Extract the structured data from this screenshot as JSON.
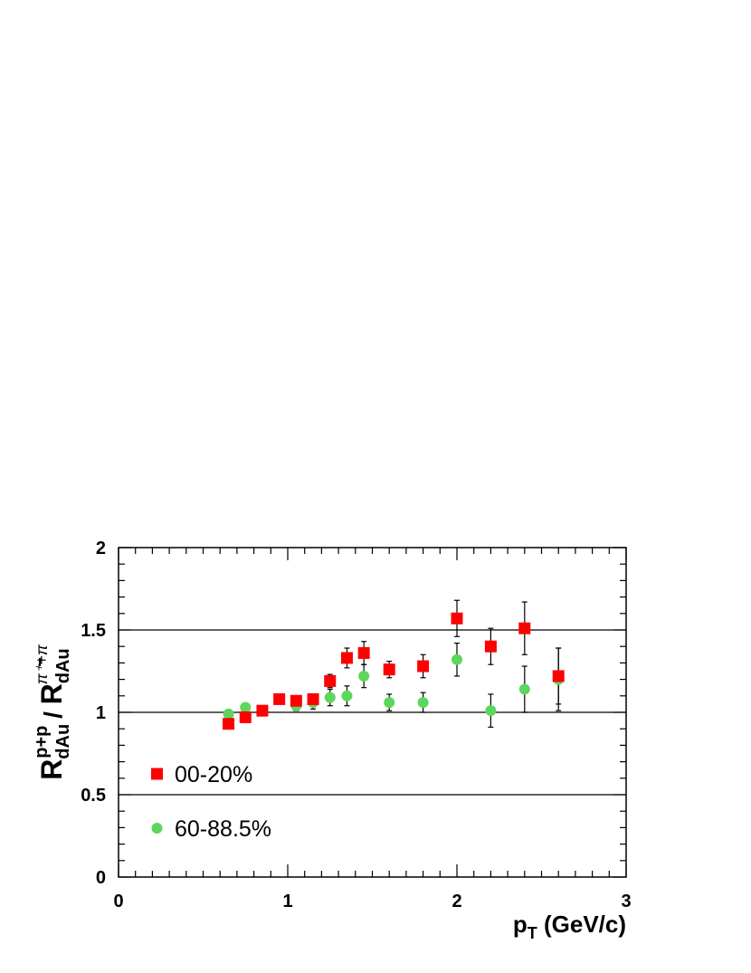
{
  "chart_data": {
    "type": "scatter",
    "xlabel": {
      "main": "p",
      "sub": "T",
      "rest": " (GeV/c)"
    },
    "ylabel": {
      "num_main": "R",
      "num_sub": "dAu",
      "num_sup": "p+p",
      "separator": " / ",
      "den_main": "R",
      "den_sub": "dAu",
      "den_sup": "π⁺+π"
    },
    "xlim": [
      0,
      3
    ],
    "ylim": [
      0,
      2
    ],
    "x_ticks": [
      "0",
      "1",
      "2",
      "3"
    ],
    "y_ticks": [
      "0",
      "0.5",
      "1",
      "1.5",
      "2"
    ],
    "reference_lines": [
      0.5,
      1.0,
      1.5
    ],
    "legend_position": "bottom-left",
    "series": [
      {
        "name": "00-20%",
        "marker": "square",
        "color": "#ff0000",
        "points": [
          {
            "x": 0.65,
            "y": 0.93,
            "err": 0.02
          },
          {
            "x": 0.75,
            "y": 0.97,
            "err": 0.02
          },
          {
            "x": 0.85,
            "y": 1.01,
            "err": 0.02
          },
          {
            "x": 0.95,
            "y": 1.08,
            "err": 0.03
          },
          {
            "x": 1.05,
            "y": 1.07,
            "err": 0.03
          },
          {
            "x": 1.15,
            "y": 1.08,
            "err": 0.03
          },
          {
            "x": 1.25,
            "y": 1.19,
            "err": 0.04
          },
          {
            "x": 1.35,
            "y": 1.33,
            "err": 0.06
          },
          {
            "x": 1.45,
            "y": 1.36,
            "err": 0.07
          },
          {
            "x": 1.6,
            "y": 1.26,
            "err": 0.05
          },
          {
            "x": 1.8,
            "y": 1.28,
            "err": 0.07
          },
          {
            "x": 2.0,
            "y": 1.57,
            "err": 0.11
          },
          {
            "x": 2.2,
            "y": 1.4,
            "err": 0.11
          },
          {
            "x": 2.4,
            "y": 1.51,
            "err": 0.16
          },
          {
            "x": 2.6,
            "y": 1.22,
            "err": 0.17
          }
        ]
      },
      {
        "name": "60-88.5%",
        "marker": "circle",
        "color": "#5ed65e",
        "points": [
          {
            "x": 0.65,
            "y": 0.99,
            "err": 0.02
          },
          {
            "x": 0.75,
            "y": 1.03,
            "err": 0.02
          },
          {
            "x": 0.95,
            "y": 1.08,
            "err": 0.02
          },
          {
            "x": 1.05,
            "y": 1.04,
            "err": 0.03
          },
          {
            "x": 1.15,
            "y": 1.06,
            "err": 0.04
          },
          {
            "x": 1.25,
            "y": 1.09,
            "err": 0.05
          },
          {
            "x": 1.35,
            "y": 1.1,
            "err": 0.06
          },
          {
            "x": 1.45,
            "y": 1.22,
            "err": 0.07
          },
          {
            "x": 1.6,
            "y": 1.06,
            "err": 0.05
          },
          {
            "x": 1.8,
            "y": 1.06,
            "err": 0.06
          },
          {
            "x": 2.0,
            "y": 1.32,
            "err": 0.1
          },
          {
            "x": 2.2,
            "y": 1.01,
            "err": 0.1
          },
          {
            "x": 2.4,
            "y": 1.14,
            "err": 0.14
          },
          {
            "x": 2.6,
            "y": 1.2,
            "err": 0.19
          }
        ]
      }
    ]
  }
}
